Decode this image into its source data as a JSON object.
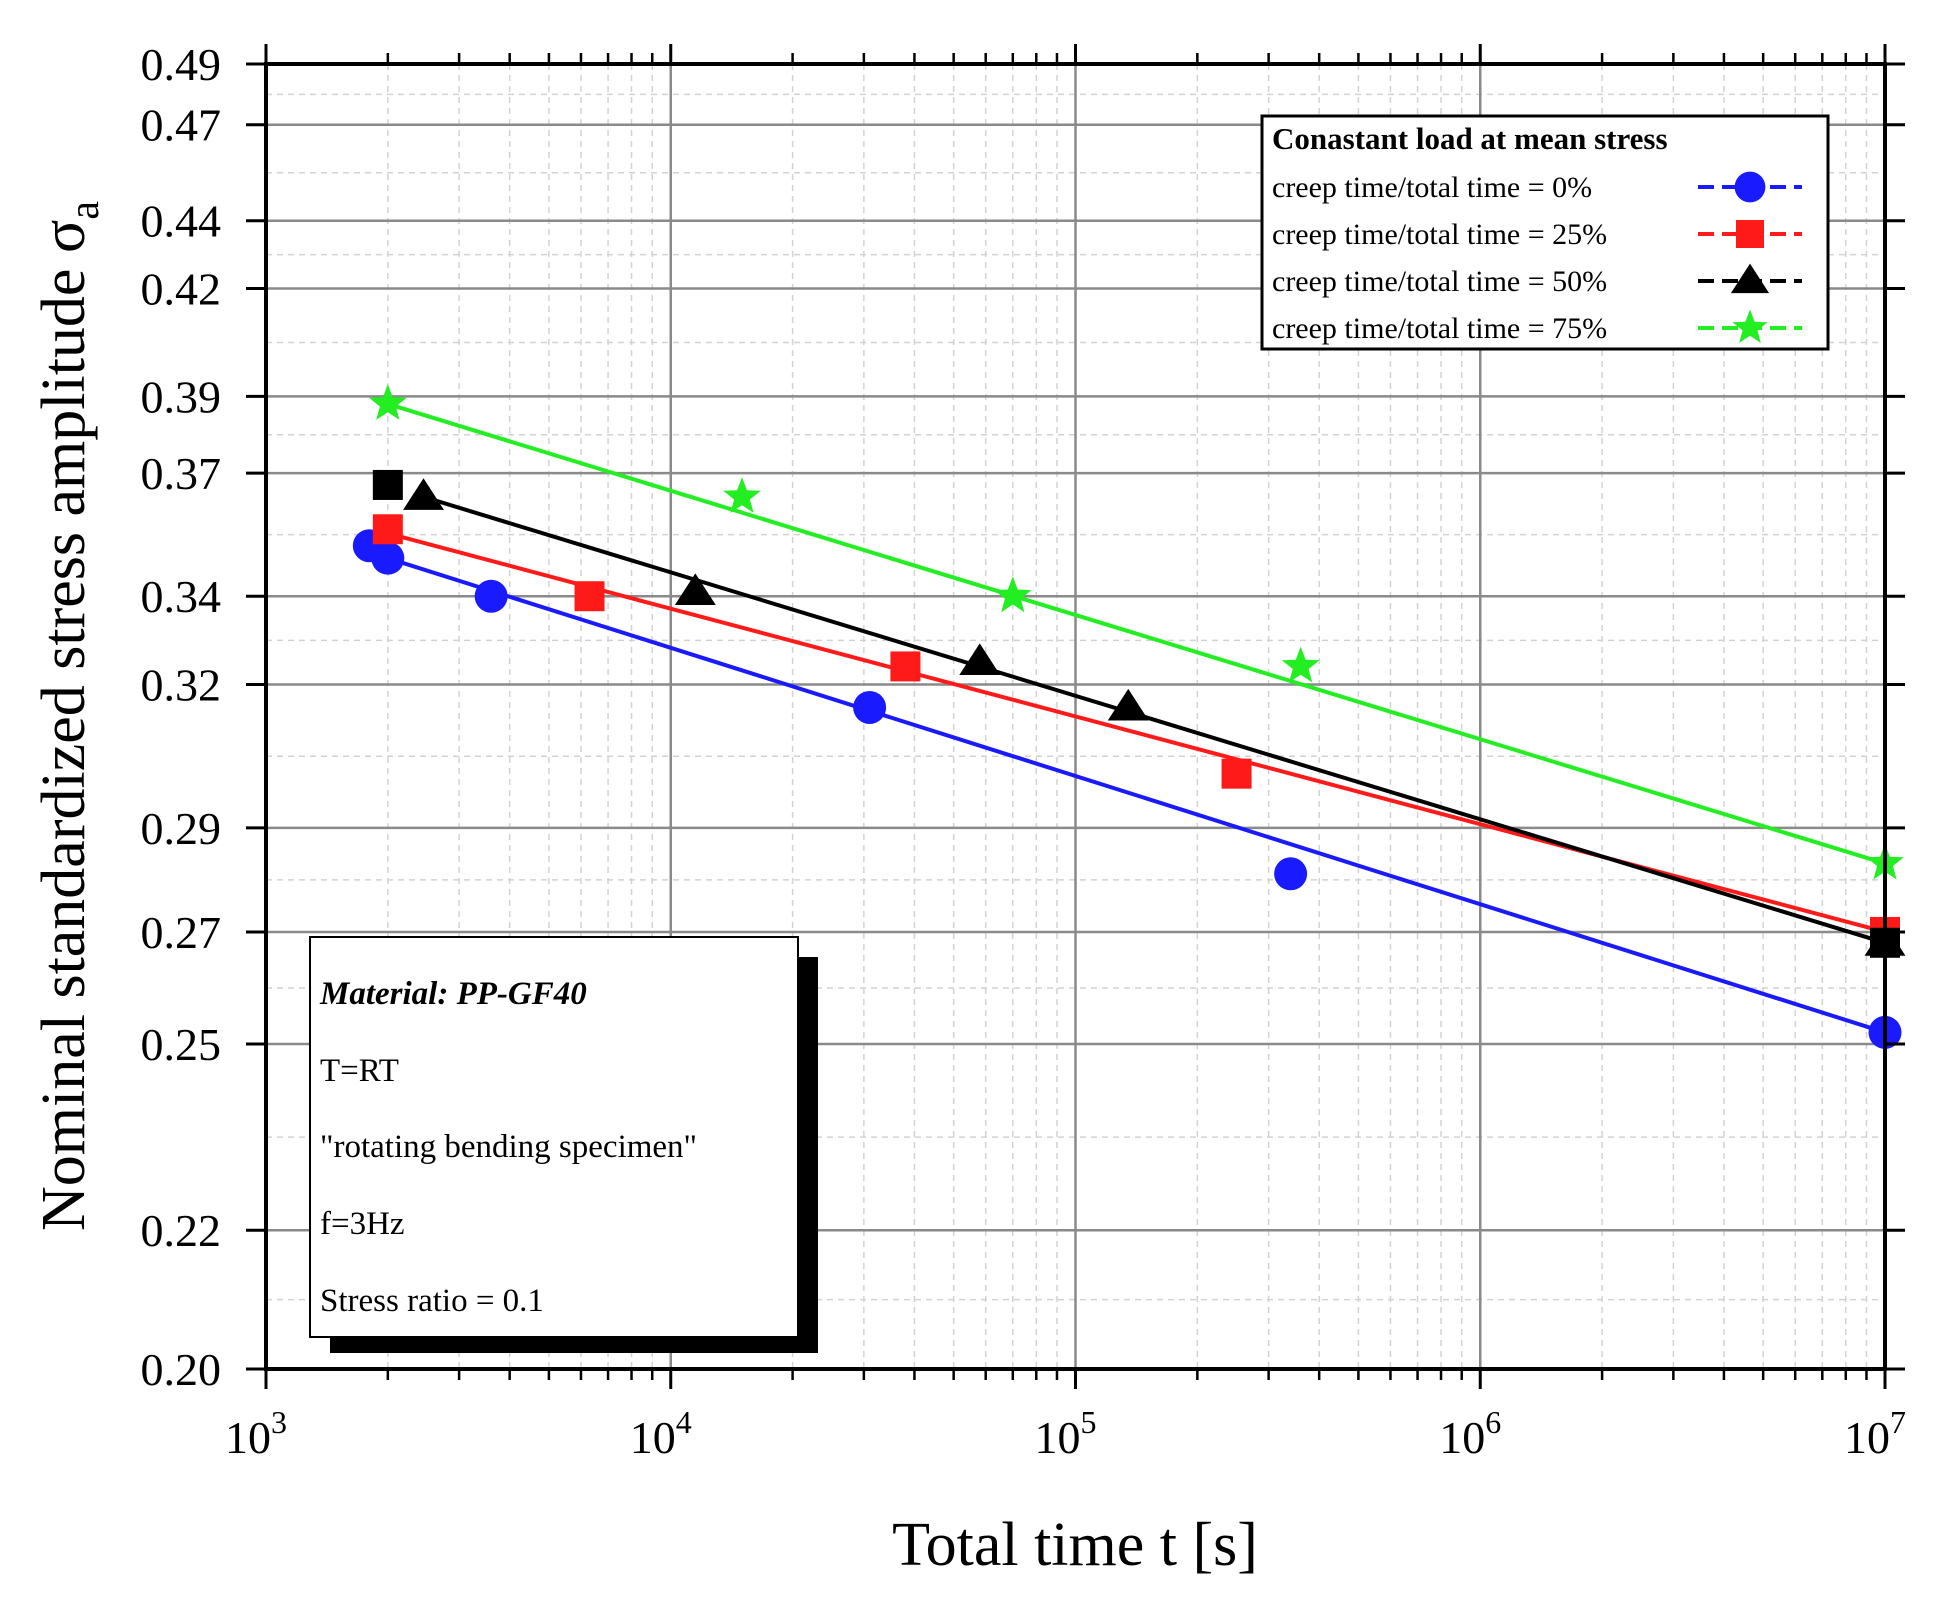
{
  "chart_data": {
    "type": "line",
    "xscale": "log",
    "yscale": "log",
    "xlabel": "Total time t [s]",
    "ylabel": "Nominal standardized stress amplitude σ",
    "ylabel_subscript": "a",
    "xlim": [
      1000,
      10000000
    ],
    "ylim": [
      0.2,
      0.49
    ],
    "x_ticks": [
      {
        "base": "10",
        "exp": "3",
        "value": 1000
      },
      {
        "base": "10",
        "exp": "4",
        "value": 10000
      },
      {
        "base": "10",
        "exp": "5",
        "value": 100000
      },
      {
        "base": "10",
        "exp": "6",
        "value": 1000000
      },
      {
        "base": "10",
        "exp": "7",
        "value": 10000000
      }
    ],
    "y_ticks": [
      "0.20",
      "0.22",
      "0.25",
      "0.27",
      "0.29",
      "0.32",
      "0.34",
      "0.37",
      "0.39",
      "0.42",
      "0.44",
      "0.47",
      "0.49"
    ],
    "grid": true,
    "legend": {
      "position": "top-right",
      "title": "Conastant load at mean stress",
      "entries": [
        "creep time/total time = 0%",
        "creep time/total time = 25%",
        "creep time/total time = 50%",
        "creep time/total time = 75%"
      ]
    },
    "series": [
      {
        "name": "creep time/total time = 0%",
        "color": "#1a1aff",
        "marker": "circle",
        "points": [
          [
            1800,
            0.352
          ],
          [
            2000,
            0.349
          ],
          [
            3600,
            0.34
          ],
          [
            31000,
            0.315
          ],
          [
            340000,
            0.281
          ],
          [
            10000000,
            0.252
          ]
        ],
        "fit": [
          [
            2000,
            0.349
          ],
          [
            10000000,
            0.252
          ]
        ]
      },
      {
        "name": "creep time/total time = 25%",
        "color": "#ff1a1a",
        "marker": "square",
        "points": [
          [
            2000,
            0.356
          ],
          [
            6300,
            0.34
          ],
          [
            38000,
            0.324
          ],
          [
            250000,
            0.301
          ],
          [
            10000000,
            0.27
          ]
        ],
        "fit": [
          [
            2000,
            0.355
          ],
          [
            10000000,
            0.27
          ]
        ]
      },
      {
        "name": "creep time/total time = 50%",
        "color": "#000000",
        "marker": "triangle",
        "points": [
          [
            2450,
            0.364
          ],
          [
            11500,
            0.341
          ],
          [
            58000,
            0.325
          ],
          [
            135000,
            0.315
          ],
          [
            10000000,
            0.268
          ]
        ],
        "extra_square_points": [
          [
            2000,
            0.367
          ],
          [
            10000000,
            0.268
          ]
        ],
        "fit": [
          [
            2450,
            0.364
          ],
          [
            10000000,
            0.268
          ]
        ]
      },
      {
        "name": "creep time/total time = 75%",
        "color": "#22ee22",
        "marker": "star",
        "points": [
          [
            2000,
            0.388
          ],
          [
            15000,
            0.364
          ],
          [
            70000,
            0.34
          ],
          [
            360000,
            0.324
          ],
          [
            10000000,
            0.283
          ]
        ],
        "fit": [
          [
            2000,
            0.388
          ],
          [
            10000000,
            0.283
          ]
        ]
      }
    ]
  },
  "info_box": {
    "material": "Material: PP-GF40",
    "lines": [
      "T=RT",
      "\"rotating bending specimen\"",
      "f=3Hz",
      "Stress ratio = 0.1"
    ]
  }
}
